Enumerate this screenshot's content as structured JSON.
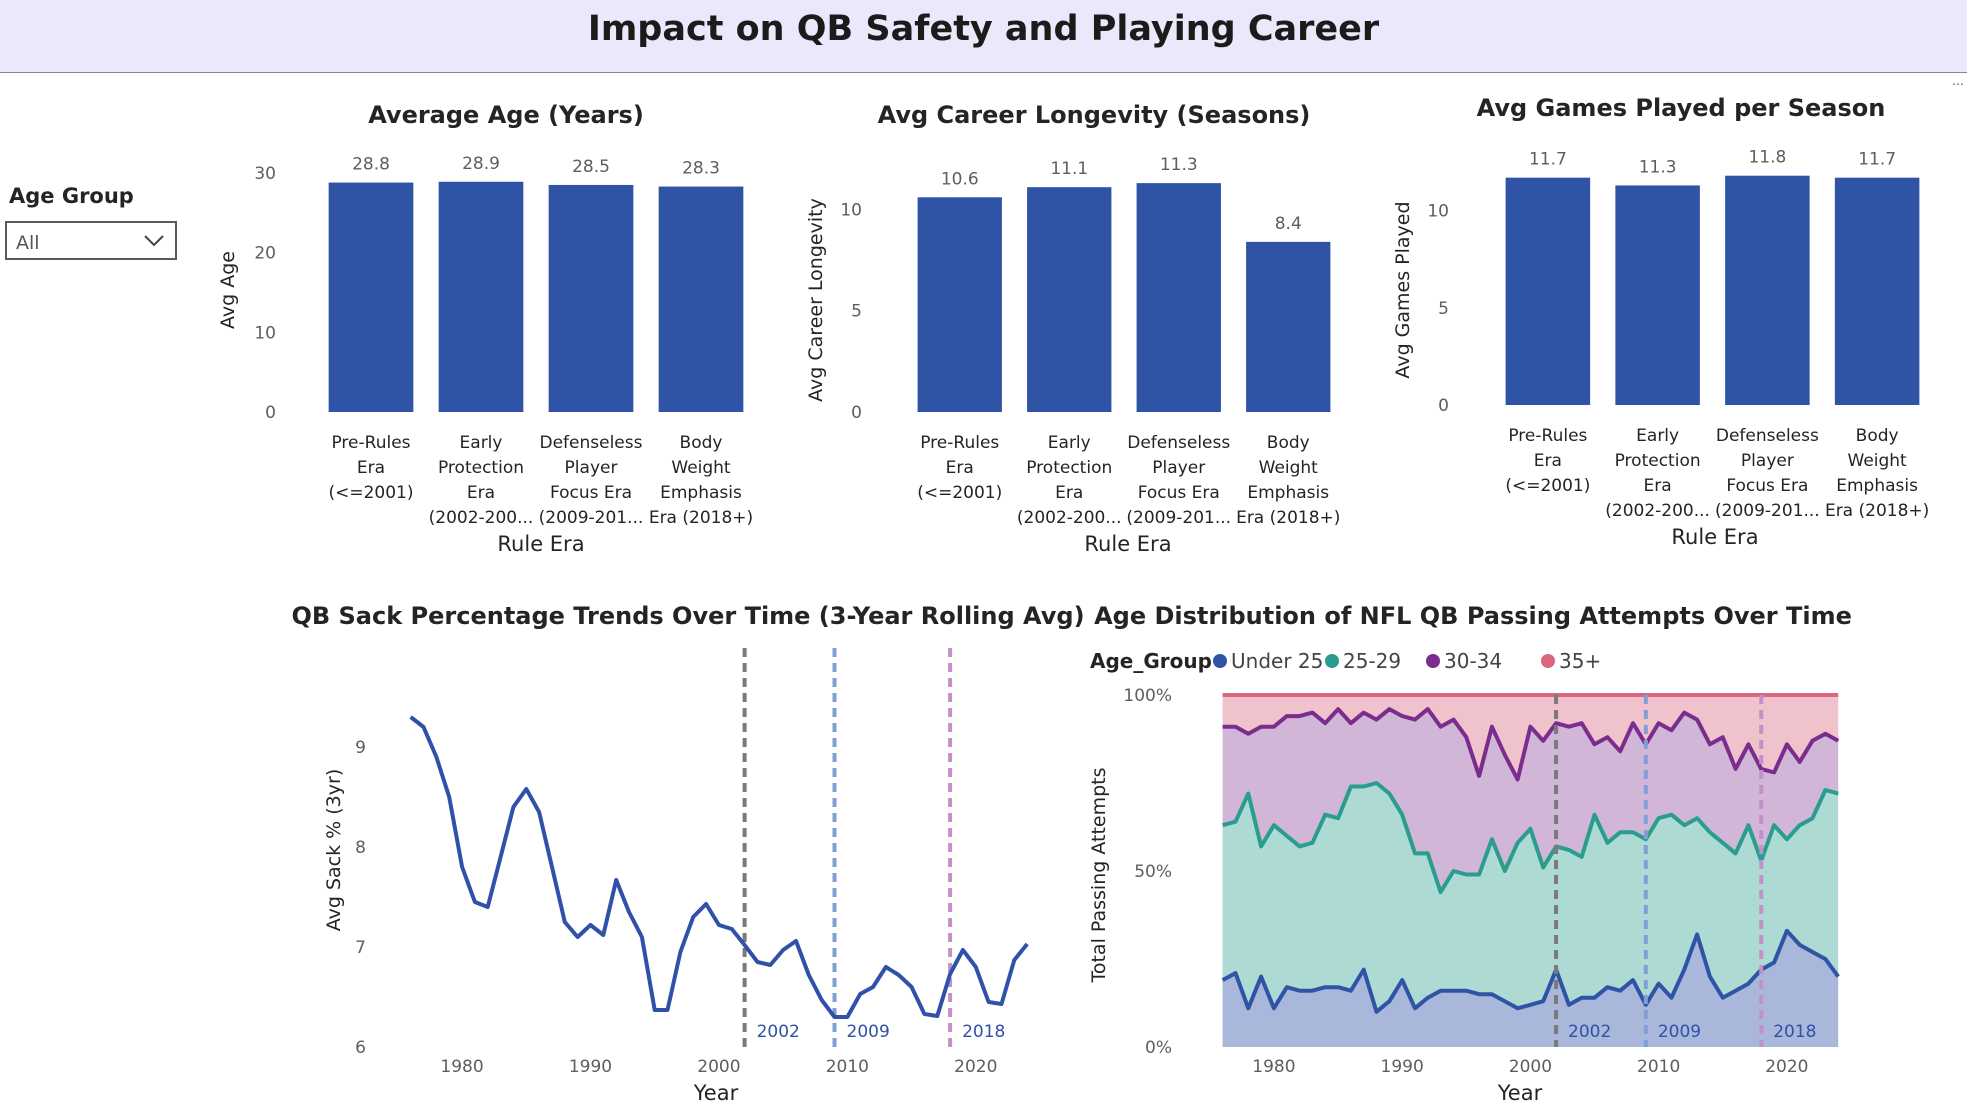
{
  "page": {
    "title": "Impact on QB Safety and Playing Career"
  },
  "filter": {
    "label": "Age Group",
    "value": "All",
    "icon": "chevron-down-icon"
  },
  "colors": {
    "header_bg": "#ebe8fc",
    "bar": "#2f54a6",
    "line": "#3051a8",
    "under25": "#2f54a6",
    "g25_29": "#2a9d8f",
    "g30_34": "#7b2d8e",
    "g35": "#d8677f",
    "vline_2002": "#7a7a7a",
    "vline_2009": "#7f9fd6",
    "vline_2018": "#c490c8"
  },
  "chart_data": [
    {
      "type": "bar",
      "title": "Average Age (Years)",
      "xlabel": "Rule Era",
      "ylabel": "Avg Age",
      "categories": [
        [
          "Pre-Rules",
          "Era",
          "(<=2001)"
        ],
        [
          "Early",
          "Protection",
          "Era",
          "(2002-200..."
        ],
        [
          "Defenseless",
          "Player",
          "Focus Era",
          "(2009-201..."
        ],
        [
          "Body",
          "Weight",
          "Emphasis",
          "Era (2018+)"
        ]
      ],
      "values": [
        28.8,
        28.9,
        28.5,
        28.3
      ],
      "data_labels": [
        "28.8",
        "28.9",
        "28.5",
        "28.3"
      ],
      "ylim": [
        0,
        30
      ],
      "yticks": [
        0,
        10,
        20,
        30
      ]
    },
    {
      "type": "bar",
      "title": "Avg Career Longevity (Seasons)",
      "xlabel": "Rule Era",
      "ylabel": "Avg Career Longevity",
      "categories": [
        [
          "Pre-Rules",
          "Era",
          "(<=2001)"
        ],
        [
          "Early",
          "Protection",
          "Era",
          "(2002-200..."
        ],
        [
          "Defenseless",
          "Player",
          "Focus Era",
          "(2009-201..."
        ],
        [
          "Body",
          "Weight",
          "Emphasis",
          "Era (2018+)"
        ]
      ],
      "values": [
        10.6,
        11.1,
        11.3,
        8.4
      ],
      "data_labels": [
        "10.6",
        "11.1",
        "11.3",
        "8.4"
      ],
      "ylim": [
        0,
        11.8
      ],
      "yticks": [
        0,
        5,
        10
      ]
    },
    {
      "type": "bar",
      "title": "Avg Games Played per Season",
      "xlabel": "Rule Era",
      "ylabel": "Avg Games Played",
      "categories": [
        [
          "Pre-Rules",
          "Era",
          "(<=2001)"
        ],
        [
          "Early",
          "Protection",
          "Era",
          "(2002-200..."
        ],
        [
          "Defenseless",
          "Player",
          "Focus Era",
          "(2009-201..."
        ],
        [
          "Body",
          "Weight",
          "Emphasis",
          "Era (2018+)"
        ]
      ],
      "values": [
        11.7,
        11.3,
        11.8,
        11.7
      ],
      "data_labels": [
        "11.7",
        "11.3",
        "11.8",
        "11.7"
      ],
      "ylim": [
        0,
        12.3
      ],
      "yticks": [
        0,
        5,
        10
      ]
    },
    {
      "type": "line",
      "title": "QB Sack Percentage Trends Over Time (3-Year Rolling Avg)",
      "xlabel": "Year",
      "ylabel": "Avg Sack % (3yr)",
      "xlim": [
        1974,
        2025
      ],
      "ylim": [
        6,
        9.5
      ],
      "xticks": [
        1980,
        1990,
        2000,
        2010,
        2020
      ],
      "yticks": [
        6,
        7,
        8,
        9
      ],
      "reference_lines": [
        {
          "x": 2002,
          "label": "2002"
        },
        {
          "x": 2009,
          "label": "2009"
        },
        {
          "x": 2018,
          "label": "2018"
        }
      ],
      "x": [
        1976,
        1977,
        1978,
        1979,
        1980,
        1981,
        1982,
        1983,
        1984,
        1985,
        1986,
        1987,
        1988,
        1989,
        1990,
        1991,
        1992,
        1993,
        1994,
        1995,
        1996,
        1997,
        1998,
        1999,
        2000,
        2001,
        2002,
        2003,
        2004,
        2005,
        2006,
        2007,
        2008,
        2009,
        2010,
        2011,
        2012,
        2013,
        2014,
        2015,
        2016,
        2017,
        2018,
        2019,
        2020,
        2021,
        2022,
        2023,
        2024
      ],
      "y": [
        9.3,
        9.2,
        8.9,
        8.5,
        7.8,
        7.45,
        7.4,
        7.9,
        8.4,
        8.58,
        8.35,
        7.8,
        7.25,
        7.1,
        7.22,
        7.12,
        7.67,
        7.35,
        7.1,
        6.37,
        6.37,
        6.95,
        7.3,
        7.43,
        7.22,
        7.18,
        7.02,
        6.85,
        6.82,
        6.97,
        7.06,
        6.72,
        6.47,
        6.3,
        6.3,
        6.53,
        6.6,
        6.8,
        6.72,
        6.6,
        6.33,
        6.31,
        6.73,
        6.97,
        6.8,
        6.45,
        6.43,
        6.87,
        7.03
      ]
    },
    {
      "type": "area",
      "stacked": "percent",
      "title": "Age Distribution of NFL QB Passing Attempts Over Time",
      "xlabel": "Year",
      "ylabel": "Total Passing Attempts",
      "legend_title": "Age_Group",
      "legend_position": "top-left",
      "xlim": [
        1974,
        2025
      ],
      "ylim": [
        0,
        100
      ],
      "xticks": [
        1980,
        1990,
        2000,
        2010,
        2020
      ],
      "yticks": [
        0,
        50,
        100
      ],
      "ytick_labels": [
        "0%",
        "50%",
        "100%"
      ],
      "reference_lines": [
        {
          "x": 2002,
          "label": "2002"
        },
        {
          "x": 2009,
          "label": "2009"
        },
        {
          "x": 2018,
          "label": "2018"
        }
      ],
      "x": [
        1976,
        1977,
        1978,
        1979,
        1980,
        1981,
        1982,
        1983,
        1984,
        1985,
        1986,
        1987,
        1988,
        1989,
        1990,
        1991,
        1992,
        1993,
        1994,
        1995,
        1996,
        1997,
        1998,
        1999,
        2000,
        2001,
        2002,
        2003,
        2004,
        2005,
        2006,
        2007,
        2008,
        2009,
        2010,
        2011,
        2012,
        2013,
        2014,
        2015,
        2016,
        2017,
        2018,
        2019,
        2020,
        2021,
        2022,
        2023,
        2024
      ],
      "series": [
        {
          "name": "Under 25",
          "cumulative_percent": [
            19,
            21,
            11,
            20,
            11,
            17,
            16,
            16,
            17,
            17,
            16,
            22,
            10,
            13,
            19,
            11,
            14,
            16,
            16,
            16,
            15,
            15,
            13,
            11,
            12,
            13,
            22,
            12,
            14,
            14,
            17,
            16,
            19,
            12,
            18,
            14,
            22,
            32,
            20,
            14,
            16,
            18,
            22,
            24,
            33,
            29,
            27,
            25,
            20
          ]
        },
        {
          "name": "25-29",
          "cumulative_percent": [
            63,
            64,
            72,
            57,
            63,
            60,
            57,
            58,
            66,
            65,
            74,
            74,
            75,
            72,
            66,
            55,
            55,
            44,
            50,
            49,
            49,
            59,
            50,
            58,
            62,
            51,
            57,
            56,
            54,
            66,
            58,
            61,
            61,
            59,
            65,
            66,
            63,
            65,
            61,
            58,
            55,
            63,
            53,
            63,
            59,
            63,
            65,
            73,
            72
          ]
        },
        {
          "name": "30-34",
          "cumulative_percent": [
            91,
            91,
            89,
            91,
            91,
            94,
            94,
            95,
            92,
            96,
            92,
            95,
            93,
            96,
            94,
            93,
            96,
            91,
            93,
            88,
            77,
            91,
            83,
            76,
            91,
            87,
            92,
            91,
            92,
            86,
            88,
            84,
            92,
            86,
            92,
            90,
            95,
            93,
            86,
            88,
            79,
            86,
            79,
            78,
            86,
            81,
            87,
            89,
            87
          ]
        },
        {
          "name": "35+",
          "cumulative_percent": [
            100,
            100,
            100,
            100,
            100,
            100,
            100,
            100,
            100,
            100,
            100,
            100,
            100,
            100,
            100,
            100,
            100,
            100,
            100,
            100,
            100,
            100,
            100,
            100,
            100,
            100,
            100,
            100,
            100,
            100,
            100,
            100,
            100,
            100,
            100,
            100,
            100,
            100,
            100,
            100,
            100,
            100,
            100,
            100,
            100,
            100,
            100,
            100,
            100
          ]
        }
      ]
    }
  ]
}
